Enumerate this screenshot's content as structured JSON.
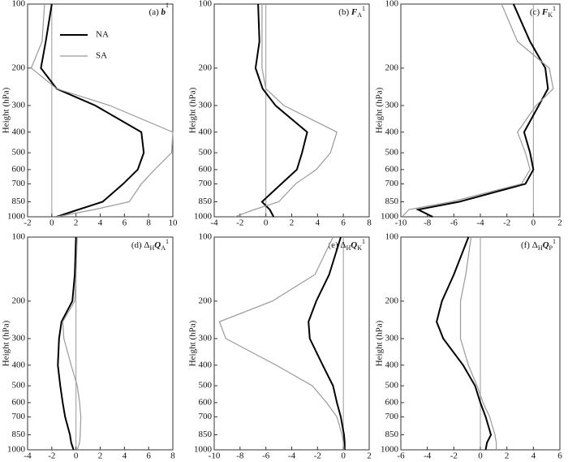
{
  "chart_data": [
    {
      "type": "line",
      "title_parts": [
        {
          "text": "(a) ",
          "style": "normal"
        },
        {
          "text": "b",
          "style": "italic"
        },
        {
          "text": "1",
          "style": "sup"
        }
      ],
      "y_label": "Height (hPa)",
      "y": [
        100,
        150,
        200,
        250,
        300,
        400,
        500,
        600,
        700,
        850,
        925,
        1000
      ],
      "ylim": [
        1000,
        100
      ],
      "yticks": [
        100,
        200,
        300,
        400,
        500,
        600,
        700,
        850,
        1000
      ],
      "log_y": true,
      "xlim": [
        -2,
        10
      ],
      "xticks": [
        -2,
        0,
        2,
        4,
        6,
        8,
        10
      ],
      "vline": 0,
      "legend": "upper left",
      "series": [
        {
          "name": "NA",
          "color": "#000000",
          "values": [
            0,
            -0.5,
            -0.9,
            0.4,
            3.6,
            7.4,
            7.6,
            7.1,
            5.9,
            4.2,
            2.2,
            0.4
          ]
        },
        {
          "name": "SA",
          "color": "#999999",
          "values": [
            -0.6,
            -0.8,
            -1.7,
            0.4,
            4.8,
            10,
            9.9,
            8.5,
            7.4,
            6.4,
            3.5,
            0.4
          ]
        }
      ]
    },
    {
      "type": "line",
      "title_parts": [
        {
          "text": "(b) ",
          "style": "normal"
        },
        {
          "text": "F",
          "style": "italic"
        },
        {
          "text": "A",
          "style": "sub"
        },
        {
          "text": "1",
          "style": "sup"
        }
      ],
      "y_label": "Height (hPa)",
      "y": [
        100,
        150,
        200,
        250,
        300,
        400,
        500,
        600,
        700,
        850,
        925,
        1000
      ],
      "ylim": [
        1000,
        100
      ],
      "yticks": [
        100,
        200,
        300,
        400,
        500,
        600,
        700,
        850,
        1000
      ],
      "log_y": true,
      "xlim": [
        -4,
        8
      ],
      "xticks": [
        -4,
        -2,
        0,
        2,
        4,
        6,
        8
      ],
      "vline": 0,
      "series": [
        {
          "name": "NA",
          "color": "#000000",
          "values": [
            -0.6,
            -0.5,
            -0.8,
            -0.25,
            0.75,
            3.2,
            2.8,
            2.4,
            1.2,
            -0.3,
            0.3,
            0.6
          ]
        },
        {
          "name": "SA",
          "color": "#999999",
          "values": [
            -0.3,
            -0.3,
            -0.3,
            0,
            1.4,
            5.5,
            5,
            3.9,
            2.3,
            1.0,
            -0.9,
            -2.4
          ]
        }
      ]
    },
    {
      "type": "line",
      "title_parts": [
        {
          "text": "(c) ",
          "style": "normal"
        },
        {
          "text": "F",
          "style": "italic"
        },
        {
          "text": "K",
          "style": "sub"
        },
        {
          "text": "1",
          "style": "sup"
        }
      ],
      "y_label": "Height (hPa)",
      "y": [
        100,
        150,
        200,
        250,
        300,
        400,
        500,
        600,
        700,
        850,
        925,
        1000
      ],
      "ylim": [
        1000,
        100
      ],
      "yticks": [
        100,
        200,
        300,
        400,
        500,
        600,
        700,
        850,
        1000
      ],
      "log_y": true,
      "xlim": [
        -10,
        2
      ],
      "xticks": [
        -10,
        -8,
        -6,
        -4,
        -2,
        0,
        2
      ],
      "vline": 0,
      "series": [
        {
          "name": "NA",
          "color": "#000000",
          "values": [
            -1.5,
            -0.25,
            0.9,
            1.1,
            0.4,
            -0.7,
            -0.25,
            0,
            -0.6,
            -5.6,
            -8.7,
            -7.6
          ]
        },
        {
          "name": "SA",
          "color": "#999999",
          "values": [
            -2.4,
            -1.2,
            1.2,
            1.5,
            0.2,
            -1.2,
            -0.6,
            -0.25,
            -0.9,
            -6.2,
            -9.4,
            -9.9
          ]
        }
      ]
    },
    {
      "type": "line",
      "title_parts": [
        {
          "text": "(d) Δ",
          "style": "normal"
        },
        {
          "text": "H",
          "style": "sub"
        },
        {
          "text": "Q",
          "style": "italic"
        },
        {
          "text": "A",
          "style": "sub"
        },
        {
          "text": "1",
          "style": "sup"
        }
      ],
      "y_label": "Height (hPa)",
      "y": [
        100,
        150,
        200,
        250,
        300,
        400,
        500,
        600,
        700,
        850,
        925,
        1000
      ],
      "ylim": [
        1000,
        100
      ],
      "yticks": [
        100,
        200,
        300,
        400,
        500,
        600,
        700,
        850,
        1000
      ],
      "log_y": true,
      "xlim": [
        -4,
        8
      ],
      "xticks": [
        -4,
        -2,
        0,
        2,
        4,
        6,
        8
      ],
      "vline": 0,
      "series": [
        {
          "name": "NA",
          "color": "#000000",
          "values": [
            0,
            -0.1,
            -0.3,
            -1.2,
            -1.4,
            -1.5,
            -1.3,
            -1.1,
            -0.9,
            -0.5,
            -0.4,
            -0.2
          ]
        },
        {
          "name": "SA",
          "color": "#999999",
          "values": [
            0.1,
            0,
            -0.1,
            -1.1,
            -1,
            -0.4,
            0.1,
            0.3,
            0.4,
            0.35,
            0.3,
            0.1
          ]
        }
      ]
    },
    {
      "type": "line",
      "title_parts": [
        {
          "text": "(e) Δ",
          "style": "normal"
        },
        {
          "text": "H",
          "style": "sub"
        },
        {
          "text": "Q",
          "style": "italic"
        },
        {
          "text": "K",
          "style": "sub"
        },
        {
          "text": "1",
          "style": "sup"
        }
      ],
      "y_label": "Height (hPa)",
      "y": [
        100,
        150,
        200,
        250,
        300,
        400,
        500,
        600,
        700,
        850,
        925,
        1000
      ],
      "ylim": [
        1000,
        100
      ],
      "yticks": [
        100,
        200,
        300,
        400,
        500,
        600,
        700,
        850,
        1000
      ],
      "log_y": true,
      "xlim": [
        -10,
        2
      ],
      "xticks": [
        -10,
        -8,
        -6,
        -4,
        -2,
        0,
        2
      ],
      "vline": 0,
      "series": [
        {
          "name": "NA",
          "color": "#000000",
          "values": [
            -0.2,
            -1.1,
            -2.1,
            -2.7,
            -2.6,
            -1.6,
            -0.8,
            -0.5,
            -0.2,
            0.05,
            0.1,
            0.1
          ]
        },
        {
          "name": "SA",
          "color": "#999999",
          "values": [
            -0.8,
            -2.2,
            -5.5,
            -9.6,
            -9.1,
            -5.2,
            -2.4,
            -1.3,
            -0.5,
            -0.1,
            0,
            0.05
          ]
        }
      ]
    },
    {
      "type": "line",
      "title_parts": [
        {
          "text": "(f) Δ",
          "style": "normal"
        },
        {
          "text": "H",
          "style": "sub"
        },
        {
          "text": "Q",
          "style": "italic"
        },
        {
          "text": "P",
          "style": "sub"
        },
        {
          "text": "1",
          "style": "sup"
        }
      ],
      "y_label": "Height (hPa)",
      "y": [
        100,
        150,
        200,
        250,
        300,
        400,
        500,
        600,
        700,
        850,
        925,
        1000
      ],
      "ylim": [
        1000,
        100
      ],
      "yticks": [
        100,
        200,
        300,
        400,
        500,
        600,
        700,
        850,
        1000
      ],
      "log_y": true,
      "xlim": [
        -6,
        6
      ],
      "xticks": [
        -6,
        -4,
        -2,
        0,
        2,
        4,
        6
      ],
      "vline": 0,
      "series": [
        {
          "name": "NA",
          "color": "#000000",
          "values": [
            -0.9,
            -2,
            -2.9,
            -3.3,
            -2.8,
            -1.3,
            -0.4,
            0,
            0.4,
            0.8,
            0.5,
            0.4
          ]
        },
        {
          "name": "SA",
          "color": "#999999",
          "values": [
            -0.7,
            -1.1,
            -1.5,
            -1.5,
            -1.5,
            -0.9,
            -0.25,
            0.2,
            0.7,
            1.1,
            1.2,
            1.2
          ]
        }
      ]
    }
  ]
}
